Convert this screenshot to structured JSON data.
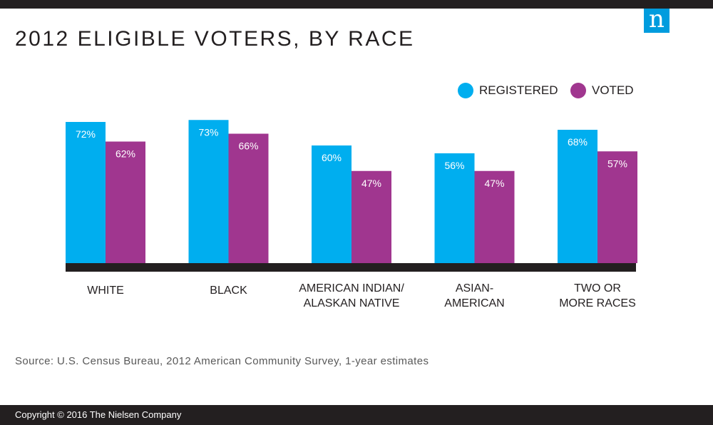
{
  "header": {
    "title": "2012 ELIGIBLE VOTERS, BY RACE",
    "logo_letter": "n"
  },
  "colors": {
    "registered": "#00aeef",
    "voted": "#a0368f",
    "baseline": "#231f20"
  },
  "chart_data": {
    "type": "bar",
    "title": "2012 ELIGIBLE VOTERS, BY RACE",
    "categories": [
      [
        "WHITE"
      ],
      [
        "BLACK"
      ],
      [
        "AMERICAN INDIAN/",
        "ALASKAN NATIVE"
      ],
      [
        "ASIAN-",
        "AMERICAN"
      ],
      [
        "TWO OR",
        "MORE RACES"
      ]
    ],
    "series": [
      {
        "name": "REGISTERED",
        "values": [
          72,
          73,
          60,
          56,
          68
        ],
        "color": "#00aeef"
      },
      {
        "name": "VOTED",
        "values": [
          62,
          66,
          47,
          47,
          57
        ],
        "color": "#a0368f"
      }
    ],
    "value_suffix": "%",
    "legend_position": "top-right",
    "grid": false
  },
  "source": "Source: U.S. Census Bureau, 2012 American Community Survey, 1-year estimates",
  "footer": {
    "copyright": "Copyright © 2016 The Nielsen Company"
  }
}
